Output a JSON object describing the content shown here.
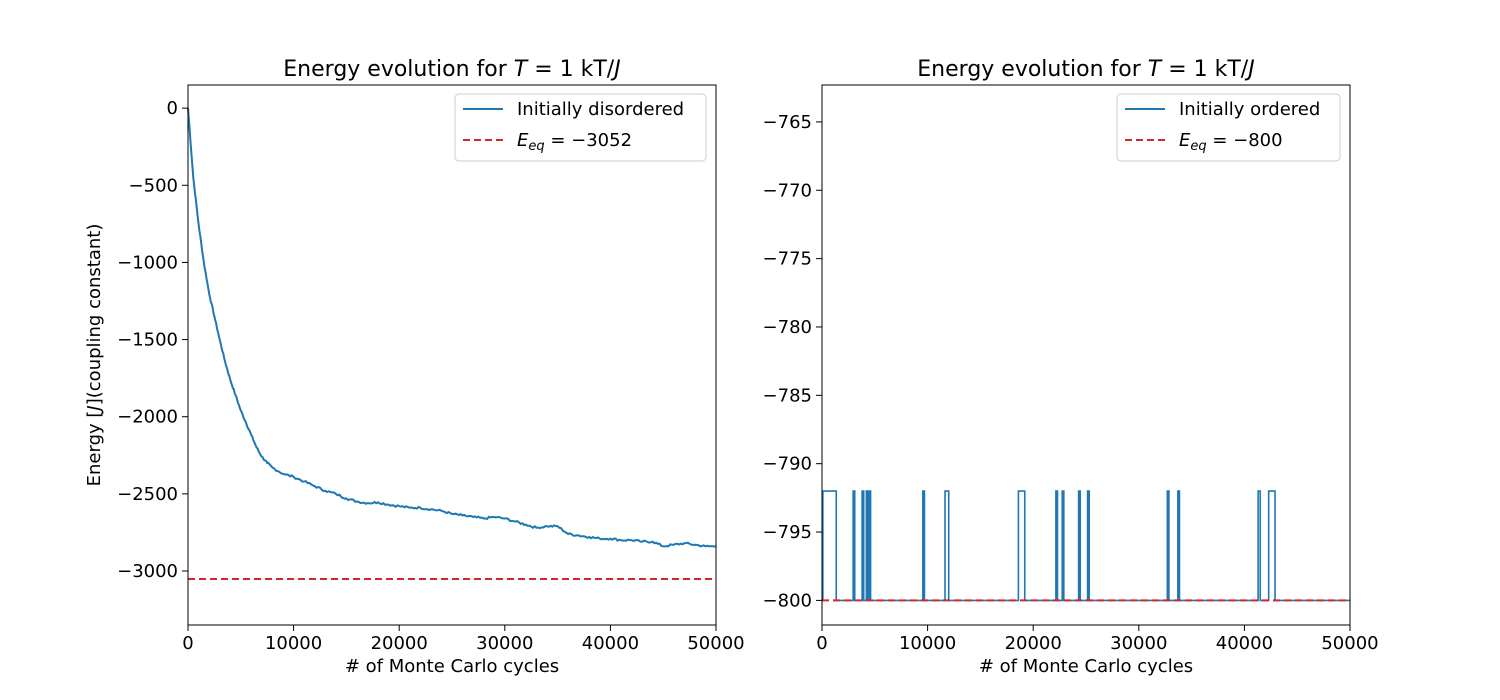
{
  "figure": {
    "background": "#ffffff"
  },
  "chart_data": [
    {
      "type": "line",
      "title": "Energy evolution for T = 1 kT/J",
      "title_parts": {
        "pre": "Energy evolution for ",
        "var": "T",
        "eq": " = 1 kT/",
        "unit_var": "J"
      },
      "xlabel": "# of Monte Carlo cycles",
      "ylabel": "Energy [J](coupling constant)",
      "ylabel_parts": {
        "pre": "Energy [",
        "var": "J",
        "post": "](coupling constant)"
      },
      "xlim": [
        0,
        50000
      ],
      "ylim": [
        -3350,
        150
      ],
      "x_ticks": [
        0,
        10000,
        20000,
        30000,
        40000,
        50000
      ],
      "x_tick_labels": [
        "0",
        "10000",
        "20000",
        "30000",
        "40000",
        "50000"
      ],
      "y_ticks": [
        0,
        -500,
        -1000,
        -1500,
        -2000,
        -2500,
        -3000
      ],
      "y_tick_labels": [
        "0",
        "−500",
        "−1000",
        "−1500",
        "−2000",
        "−2500",
        "−3000"
      ],
      "grid": false,
      "legend_position": "upper right",
      "series": [
        {
          "name": "Initially disordered",
          "color": "#1f77b4",
          "style": "solid",
          "x": [
            0,
            500,
            1000,
            1500,
            2000,
            2500,
            3000,
            3500,
            4000,
            4500,
            5000,
            5500,
            6000,
            6500,
            7000,
            7500,
            8000,
            9000,
            10000,
            11000,
            12000,
            13000,
            14000,
            15000,
            16000,
            17000,
            18000,
            19000,
            20000,
            21000,
            22000,
            23000,
            24000,
            25000,
            26000,
            27000,
            28000,
            29000,
            30000,
            31000,
            32000,
            33000,
            34000,
            35000,
            36000,
            37000,
            38000,
            39000,
            40000,
            41000,
            42000,
            43000,
            44000,
            45000,
            46000,
            47000,
            48000,
            49000,
            50000
          ],
          "y": [
            0,
            -450,
            -750,
            -1000,
            -1200,
            -1350,
            -1500,
            -1640,
            -1760,
            -1860,
            -1960,
            -2040,
            -2120,
            -2200,
            -2260,
            -2300,
            -2330,
            -2370,
            -2390,
            -2420,
            -2450,
            -2480,
            -2500,
            -2530,
            -2550,
            -2560,
            -2555,
            -2570,
            -2580,
            -2590,
            -2590,
            -2600,
            -2610,
            -2630,
            -2640,
            -2650,
            -2660,
            -2650,
            -2660,
            -2680,
            -2700,
            -2720,
            -2710,
            -2710,
            -2760,
            -2770,
            -2780,
            -2790,
            -2790,
            -2800,
            -2800,
            -2810,
            -2810,
            -2840,
            -2830,
            -2820,
            -2830,
            -2840,
            -2840
          ]
        },
        {
          "name": "E_eq = −3052",
          "name_parts": {
            "var": "E",
            "sub": "eq",
            "eq": " = −3052"
          },
          "color": "#d62728",
          "style": "dashed",
          "y_constant": -3052
        }
      ]
    },
    {
      "type": "line",
      "title": "Energy evolution for T = 1 kT/J",
      "title_parts": {
        "pre": "Energy evolution for ",
        "var": "T",
        "eq": " = 1 kT/",
        "unit_var": "J"
      },
      "xlabel": "# of Monte Carlo cycles",
      "ylabel": "",
      "xlim": [
        0,
        50000
      ],
      "ylim": [
        -801.8,
        -762.3
      ],
      "x_ticks": [
        0,
        10000,
        20000,
        30000,
        40000,
        50000
      ],
      "x_tick_labels": [
        "0",
        "10000",
        "20000",
        "30000",
        "40000",
        "50000"
      ],
      "y_ticks": [
        -765,
        -770,
        -775,
        -780,
        -785,
        -790,
        -795,
        -800
      ],
      "y_tick_labels": [
        "−765",
        "−770",
        "−775",
        "−780",
        "−785",
        "−790",
        "−795",
        "−800"
      ],
      "grid": false,
      "legend_position": "upper right",
      "series": [
        {
          "name": "Initially ordered",
          "color": "#1f77b4",
          "style": "step",
          "base": -800,
          "high": -792,
          "spikes": [
            [
              80,
              1350
            ],
            [
              2950,
              3100
            ],
            [
              3800,
              3950
            ],
            [
              4200,
              4350
            ],
            [
              4450,
              4600
            ],
            [
              9550,
              9700
            ],
            [
              11650,
              12000
            ],
            [
              18600,
              19200
            ],
            [
              22150,
              22300
            ],
            [
              22750,
              22900
            ],
            [
              24300,
              24450
            ],
            [
              25150,
              25300
            ],
            [
              32700,
              32850
            ],
            [
              33700,
              33850
            ],
            [
              41300,
              41500
            ],
            [
              42300,
              42900
            ]
          ]
        },
        {
          "name": "E_eq = −800",
          "name_parts": {
            "var": "E",
            "sub": "eq",
            "eq": " = −800"
          },
          "color": "#d62728",
          "style": "dashed",
          "y_constant": -800
        }
      ]
    }
  ]
}
